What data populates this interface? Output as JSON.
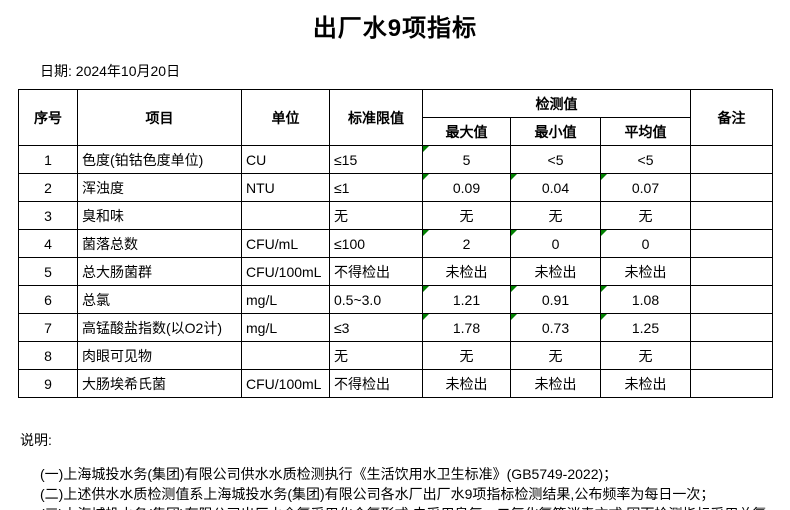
{
  "title": "出厂水9项指标",
  "date_line": "日期: 2024年10月20日",
  "colors": {
    "flag_green": "#008000",
    "border": "#000000",
    "background": "#ffffff"
  },
  "table": {
    "headers": {
      "no": "序号",
      "item": "项目",
      "unit": "单位",
      "limit": "标准限值",
      "detection_group": "检测值",
      "max": "最大值",
      "min": "最小值",
      "avg": "平均值",
      "remark": "备注"
    },
    "rows": [
      {
        "no": "1",
        "item": "色度(铂钴色度单位)",
        "unit": "CU",
        "limit": "≤15",
        "max": "5",
        "min": "<5",
        "avg": "<5",
        "remark": "",
        "flags": {
          "max": true,
          "min": false,
          "avg": false
        }
      },
      {
        "no": "2",
        "item": "浑浊度",
        "unit": "NTU",
        "limit": "≤1",
        "max": "0.09",
        "min": "0.04",
        "avg": "0.07",
        "remark": "",
        "flags": {
          "max": true,
          "min": true,
          "avg": true
        }
      },
      {
        "no": "3",
        "item": "臭和味",
        "unit": "",
        "limit": "无",
        "max": "无",
        "min": "无",
        "avg": "无",
        "remark": "",
        "flags": {
          "max": false,
          "min": false,
          "avg": false
        }
      },
      {
        "no": "4",
        "item": "菌落总数",
        "unit": "CFU/mL",
        "limit": "≤100",
        "max": "2",
        "min": "0",
        "avg": "0",
        "remark": "",
        "flags": {
          "max": true,
          "min": true,
          "avg": true
        }
      },
      {
        "no": "5",
        "item": "总大肠菌群",
        "unit": "CFU/100mL",
        "limit": "不得检出",
        "max": "未检出",
        "min": "未检出",
        "avg": "未检出",
        "remark": "",
        "flags": {
          "max": false,
          "min": false,
          "avg": false
        }
      },
      {
        "no": "6",
        "item": "总氯",
        "unit": "mg/L",
        "limit": "0.5~3.0",
        "max": "1.21",
        "min": "0.91",
        "avg": "1.08",
        "remark": "",
        "flags": {
          "max": true,
          "min": true,
          "avg": true
        }
      },
      {
        "no": "7",
        "item": "高锰酸盐指数(以O2计)",
        "unit": "mg/L",
        "limit": "≤3",
        "max": "1.78",
        "min": "0.73",
        "avg": "1.25",
        "remark": "",
        "flags": {
          "max": true,
          "min": true,
          "avg": true
        }
      },
      {
        "no": "8",
        "item": "肉眼可见物",
        "unit": "",
        "limit": "无",
        "max": "无",
        "min": "无",
        "avg": "无",
        "remark": "",
        "flags": {
          "max": false,
          "min": false,
          "avg": false
        }
      },
      {
        "no": "9",
        "item": "大肠埃希氏菌",
        "unit": "CFU/100mL",
        "limit": "不得检出",
        "max": "未检出",
        "min": "未检出",
        "avg": "未检出",
        "remark": "",
        "flags": {
          "max": false,
          "min": false,
          "avg": false
        }
      }
    ]
  },
  "notes": {
    "label": "说明:",
    "items": [
      "(一)上海城投水务(集团)有限公司供水水质检测执行《生活饮用水卫生标准》(GB5749-2022)；",
      "(二)上述供水水质检测值系上海城投水务(集团)有限公司各水厂出厂水9项指标检测结果,公布频率为每日一次；",
      "(三)上海城投水务(集团)有限公司出厂水余氯采用化合氯形式,未采用臭氧、二氧化氯等消毒方式,因而检测指标采用总氯。"
    ]
  }
}
